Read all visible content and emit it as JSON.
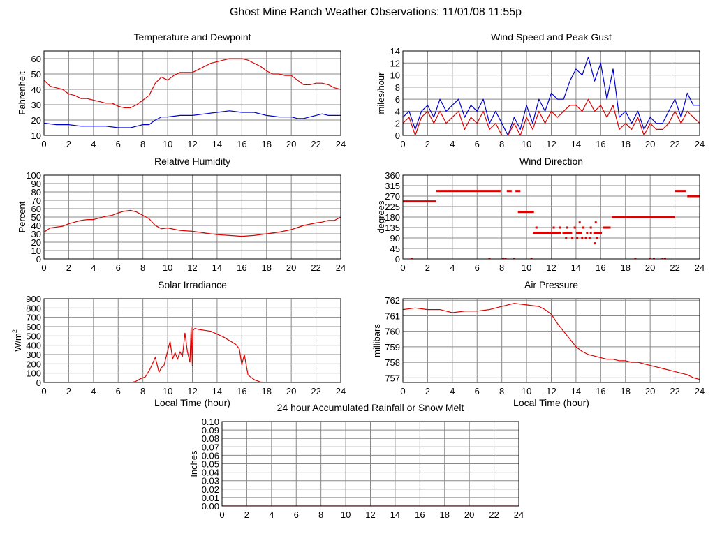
{
  "page": {
    "title": "Ghost Mine Ranch Weather Observations: 11/01/08 11:55p"
  },
  "colors": {
    "red": "#dd0000",
    "blue": "#0000cc",
    "grid": "#888888",
    "frame": "#000000"
  },
  "chart_data": [
    {
      "id": "temp",
      "type": "line",
      "title": "Temperature and Dewpoint",
      "ylabel": "Fahrenheit",
      "xlabel": "",
      "xlim": [
        0,
        24
      ],
      "ylim": [
        10,
        65
      ],
      "yticks": [
        10,
        20,
        30,
        40,
        50,
        60
      ],
      "xticks": [
        0,
        2,
        4,
        6,
        8,
        10,
        12,
        14,
        16,
        18,
        20,
        22,
        24
      ],
      "series": [
        {
          "name": "Temperature",
          "color": "red",
          "x": [
            0,
            0.5,
            1,
            1.5,
            2,
            2.5,
            3,
            3.5,
            4,
            4.5,
            5,
            5.5,
            6,
            6.5,
            7,
            7.5,
            8,
            8.5,
            9,
            9.5,
            10,
            10.5,
            11,
            11.5,
            12,
            12.5,
            13,
            13.5,
            14,
            14.5,
            15,
            15.5,
            16,
            16.5,
            17,
            17.5,
            18,
            18.5,
            19,
            19.5,
            20,
            20.5,
            21,
            21.5,
            22,
            22.5,
            23,
            23.5,
            24
          ],
          "values": [
            46,
            42,
            41,
            40,
            37,
            36,
            34,
            34,
            33,
            32,
            31,
            31,
            29,
            28,
            28,
            30,
            33,
            36,
            44,
            48,
            46,
            49,
            51,
            51,
            51,
            53,
            55,
            57,
            58,
            59,
            60,
            60,
            60,
            59,
            57,
            55,
            52,
            50,
            50,
            49,
            49,
            46,
            43,
            43,
            44,
            44,
            43,
            41,
            40
          ]
        },
        {
          "name": "Dewpoint",
          "color": "blue",
          "x": [
            0,
            1,
            2,
            3,
            4,
            5,
            6,
            6.5,
            7,
            7.5,
            8,
            8.5,
            9,
            9.5,
            10,
            11,
            12,
            13,
            14,
            15,
            16,
            17,
            18,
            19,
            20,
            20.5,
            21,
            21.5,
            22,
            22.5,
            23,
            24
          ],
          "values": [
            18,
            17,
            17,
            16,
            16,
            16,
            15,
            15,
            15,
            16,
            17,
            17,
            20,
            22,
            22,
            23,
            23,
            24,
            25,
            26,
            25,
            25,
            23,
            22,
            22,
            21,
            21,
            22,
            23,
            24,
            23,
            23
          ]
        }
      ]
    },
    {
      "id": "wind",
      "type": "line",
      "title": "Wind Speed and Peak Gust",
      "ylabel": "miles/hour",
      "xlabel": "",
      "xlim": [
        0,
        24
      ],
      "ylim": [
        0,
        14
      ],
      "yticks": [
        0,
        2,
        4,
        6,
        8,
        10,
        12,
        14
      ],
      "xticks": [
        0,
        2,
        4,
        6,
        8,
        10,
        12,
        14,
        16,
        18,
        20,
        22,
        24
      ],
      "series": [
        {
          "name": "Peak Gust",
          "color": "blue",
          "x": [
            0,
            0.5,
            1,
            1.5,
            2,
            2.5,
            3,
            3.5,
            4,
            4.5,
            5,
            5.5,
            6,
            6.5,
            7,
            7.5,
            8,
            8.5,
            9,
            9.5,
            10,
            10.5,
            11,
            11.5,
            12,
            12.5,
            13,
            13.5,
            14,
            14.5,
            15,
            15.5,
            16,
            16.5,
            17,
            17.5,
            18,
            18.5,
            19,
            19.5,
            20,
            20.5,
            21,
            21.5,
            22,
            22.5,
            23,
            23.5,
            24
          ],
          "values": [
            3,
            4,
            1,
            4,
            5,
            3,
            6,
            4,
            5,
            6,
            3,
            5,
            4,
            6,
            2,
            4,
            2,
            0,
            3,
            1,
            5,
            2,
            6,
            4,
            7,
            6,
            6,
            9,
            11,
            10,
            13,
            9,
            12,
            6,
            11,
            3,
            4,
            2,
            4,
            1,
            3,
            2,
            2,
            4,
            6,
            3,
            7,
            5,
            5
          ]
        },
        {
          "name": "Wind Speed",
          "color": "red",
          "x": [
            0,
            0.5,
            1,
            1.5,
            2,
            2.5,
            3,
            3.5,
            4,
            4.5,
            5,
            5.5,
            6,
            6.5,
            7,
            7.5,
            8,
            8.5,
            9,
            9.5,
            10,
            10.5,
            11,
            11.5,
            12,
            12.5,
            13,
            13.5,
            14,
            14.5,
            15,
            15.5,
            16,
            16.5,
            17,
            17.5,
            18,
            18.5,
            19,
            19.5,
            20,
            20.5,
            21,
            21.5,
            22,
            22.5,
            23,
            23.5,
            24
          ],
          "values": [
            2,
            3,
            0,
            3,
            4,
            2,
            4,
            2,
            3,
            4,
            1,
            3,
            2,
            4,
            1,
            2,
            0,
            0,
            2,
            0,
            3,
            1,
            4,
            2,
            4,
            3,
            4,
            5,
            5,
            4,
            6,
            4,
            5,
            3,
            5,
            1,
            2,
            1,
            3,
            0,
            2,
            1,
            1,
            2,
            4,
            2,
            4,
            3,
            2
          ]
        }
      ]
    },
    {
      "id": "humidity",
      "type": "line",
      "title": "Relative Humidity",
      "ylabel": "Percent",
      "xlabel": "",
      "xlim": [
        0,
        24
      ],
      "ylim": [
        0,
        100
      ],
      "yticks": [
        0,
        10,
        20,
        30,
        40,
        50,
        60,
        70,
        80,
        90,
        100
      ],
      "xticks": [
        0,
        2,
        4,
        6,
        8,
        10,
        12,
        14,
        16,
        18,
        20,
        22,
        24
      ],
      "series": [
        {
          "name": "Relative Humidity",
          "color": "red",
          "x": [
            0,
            0.5,
            1,
            1.5,
            2,
            2.5,
            3,
            3.5,
            4,
            4.5,
            5,
            5.5,
            6,
            6.5,
            7,
            7.5,
            8,
            8.5,
            9,
            9.5,
            10,
            11,
            12,
            13,
            14,
            15,
            16,
            17,
            18,
            19,
            20,
            21,
            22,
            22.5,
            23,
            23.5,
            24
          ],
          "values": [
            32,
            37,
            38,
            39,
            42,
            44,
            46,
            47,
            47,
            49,
            51,
            52,
            55,
            57,
            58,
            56,
            52,
            48,
            40,
            36,
            37,
            34,
            33,
            31,
            29,
            28,
            27,
            28,
            30,
            32,
            35,
            40,
            43,
            44,
            46,
            46,
            50
          ]
        }
      ]
    },
    {
      "id": "winddir",
      "type": "scatter",
      "title": "Wind Direction",
      "ylabel": "degrees",
      "xlabel": "",
      "xlim": [
        0,
        24
      ],
      "ylim": [
        0,
        360
      ],
      "yticks": [
        0,
        45,
        90,
        135,
        180,
        225,
        270,
        315,
        360
      ],
      "xticks": [
        0,
        2,
        4,
        6,
        8,
        10,
        12,
        14,
        16,
        18,
        20,
        22,
        24
      ],
      "segments": [
        {
          "x0": 0,
          "x1": 2.7,
          "y": 247
        },
        {
          "x0": 2.7,
          "x1": 7.9,
          "y": 292
        },
        {
          "x0": 8.4,
          "x1": 8.8,
          "y": 292
        },
        {
          "x0": 9.1,
          "x1": 9.5,
          "y": 292
        },
        {
          "x0": 9.3,
          "x1": 10.6,
          "y": 202
        },
        {
          "x0": 10.5,
          "x1": 12.8,
          "y": 112
        },
        {
          "x0": 12.9,
          "x1": 13.5,
          "y": 112
        },
        {
          "x0": 14.0,
          "x1": 14.5,
          "y": 112
        },
        {
          "x0": 15.4,
          "x1": 16.1,
          "y": 112
        },
        {
          "x0": 16.2,
          "x1": 16.8,
          "y": 135
        },
        {
          "x0": 16.9,
          "x1": 22.0,
          "y": 180
        },
        {
          "x0": 22.0,
          "x1": 22.9,
          "y": 292
        },
        {
          "x0": 23.0,
          "x1": 24.0,
          "y": 270
        }
      ],
      "points": [
        {
          "x": 0.7,
          "y": 0
        },
        {
          "x": 7.0,
          "y": 0
        },
        {
          "x": 8.1,
          "y": 0
        },
        {
          "x": 8.3,
          "y": 0
        },
        {
          "x": 9.0,
          "x2": 0,
          "y": 0
        },
        {
          "x": 10.4,
          "y": 0
        },
        {
          "x": 18.8,
          "y": 0
        },
        {
          "x": 20.0,
          "y": 0
        },
        {
          "x": 20.3,
          "y": 0
        },
        {
          "x": 21.0,
          "y": 0
        },
        {
          "x": 21.2,
          "y": 0
        },
        {
          "x": 10.8,
          "y": 135
        },
        {
          "x": 12.2,
          "y": 135
        },
        {
          "x": 12.7,
          "y": 135
        },
        {
          "x": 13.3,
          "y": 135
        },
        {
          "x": 13.9,
          "y": 135
        },
        {
          "x": 14.6,
          "y": 135
        },
        {
          "x": 15.2,
          "y": 135
        },
        {
          "x": 14.3,
          "y": 157
        },
        {
          "x": 15.6,
          "y": 157
        },
        {
          "x": 13.6,
          "y": 112
        },
        {
          "x": 14.9,
          "y": 112
        },
        {
          "x": 15.2,
          "y": 112
        },
        {
          "x": 13.2,
          "y": 90
        },
        {
          "x": 13.7,
          "y": 90
        },
        {
          "x": 14.1,
          "y": 90
        },
        {
          "x": 14.5,
          "y": 90
        },
        {
          "x": 14.8,
          "y": 90
        },
        {
          "x": 15.1,
          "y": 90
        },
        {
          "x": 15.7,
          "y": 90
        },
        {
          "x": 15.5,
          "y": 67
        }
      ]
    },
    {
      "id": "solar",
      "type": "area",
      "title": "Solar Irradiance",
      "ylabel": "W/m",
      "ylabel_sup": "2",
      "xlabel": "Local Time (hour)",
      "xlim": [
        0,
        24
      ],
      "ylim": [
        0,
        900
      ],
      "yticks": [
        0,
        100,
        200,
        300,
        400,
        500,
        600,
        700,
        800,
        900
      ],
      "xticks": [
        0,
        2,
        4,
        6,
        8,
        10,
        12,
        14,
        16,
        18,
        20,
        22,
        24
      ],
      "series": [
        {
          "name": "Solar Irradiance",
          "color": "red",
          "x": [
            0,
            7,
            7.4,
            7.8,
            8.2,
            8.6,
            9.0,
            9.3,
            9.5,
            9.7,
            10.0,
            10.2,
            10.4,
            10.6,
            10.8,
            11.0,
            11.2,
            11.4,
            11.6,
            11.8,
            11.9,
            12.0,
            12.05,
            12.2,
            12.5,
            13,
            13.5,
            14,
            14.5,
            15,
            15.5,
            15.8,
            16.0,
            16.2,
            16.5,
            17,
            17.5,
            18,
            24
          ],
          "values": [
            0,
            0,
            10,
            40,
            60,
            150,
            270,
            110,
            160,
            180,
            340,
            440,
            250,
            320,
            250,
            330,
            280,
            530,
            330,
            220,
            600,
            180,
            560,
            580,
            570,
            560,
            550,
            520,
            490,
            450,
            410,
            360,
            190,
            300,
            80,
            30,
            5,
            0,
            0
          ]
        }
      ]
    },
    {
      "id": "pressure",
      "type": "line",
      "title": "Air Pressure",
      "ylabel": "millibars",
      "xlabel": "Local Time (hour)",
      "xlim": [
        0,
        24
      ],
      "ylim": [
        756.7,
        762.1
      ],
      "yticks": [
        757,
        758,
        759,
        760,
        761,
        762
      ],
      "xticks": [
        0,
        2,
        4,
        6,
        8,
        10,
        12,
        14,
        16,
        18,
        20,
        22,
        24
      ],
      "series": [
        {
          "name": "Air Pressure",
          "color": "red",
          "x": [
            0,
            1,
            2,
            3,
            4,
            5,
            6,
            7,
            8,
            9,
            10,
            11,
            11.5,
            12,
            12.5,
            13,
            13.5,
            14,
            14.5,
            15,
            15.5,
            16,
            16.5,
            17,
            17.5,
            18,
            18.5,
            19,
            19.5,
            20,
            20.5,
            21,
            21.5,
            22,
            22.5,
            23,
            23.5,
            24
          ],
          "values": [
            761.4,
            761.5,
            761.4,
            761.4,
            761.2,
            761.3,
            761.3,
            761.4,
            761.6,
            761.8,
            761.7,
            761.6,
            761.4,
            761.1,
            760.5,
            760.0,
            759.5,
            759.0,
            758.7,
            758.5,
            758.4,
            758.3,
            758.2,
            758.2,
            758.1,
            758.1,
            758.0,
            758.0,
            757.9,
            757.8,
            757.7,
            757.6,
            757.5,
            757.4,
            757.3,
            757.2,
            757.0,
            756.9
          ]
        }
      ]
    },
    {
      "id": "rain",
      "type": "line",
      "title": "24 hour Accumulated Rainfall or Snow Melt",
      "ylabel": "Inches",
      "xlabel": "",
      "xlim": [
        0,
        24
      ],
      "ylim": [
        0,
        0.1
      ],
      "yticks": [
        "0.00",
        "0.01",
        "0.02",
        "0.03",
        "0.04",
        "0.05",
        "0.06",
        "0.07",
        "0.08",
        "0.09",
        "0.10"
      ],
      "xticks": [
        0,
        2,
        4,
        6,
        8,
        10,
        12,
        14,
        16,
        18,
        20,
        22,
        24
      ],
      "series": [
        {
          "name": "Rainfall",
          "color": "red",
          "x": [
            0,
            24
          ],
          "values": [
            0,
            0
          ]
        }
      ]
    }
  ]
}
